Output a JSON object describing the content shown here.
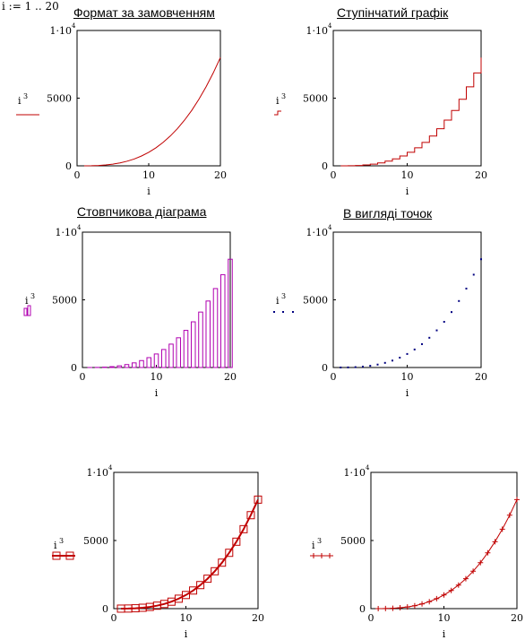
{
  "range_definition": "i := 1 .. 20",
  "colors": {
    "line": "#c00000",
    "bar": "#b000b0",
    "point": "#000080",
    "frame": "#000000"
  },
  "chart_data": [
    {
      "type": "line",
      "title": "Формат за замовченням",
      "xlabel": "i",
      "ylabel": "i",
      "ylabel_exponent": "3",
      "trace_style": "solid-line",
      "x": [
        1,
        2,
        3,
        4,
        5,
        6,
        7,
        8,
        9,
        10,
        11,
        12,
        13,
        14,
        15,
        16,
        17,
        18,
        19,
        20
      ],
      "y": [
        1,
        8,
        27,
        64,
        125,
        216,
        343,
        512,
        729,
        1000,
        1331,
        1728,
        2197,
        2744,
        3375,
        4096,
        4913,
        5832,
        6859,
        8000
      ],
      "xlim": [
        0,
        20
      ],
      "ylim": [
        0,
        10000
      ],
      "xticks": [
        "0",
        "10",
        "20"
      ],
      "yticks": [
        "0",
        "5000",
        "1·10"
      ],
      "ytick_top_exponent": "4"
    },
    {
      "type": "line",
      "title": "Ступінчатий графік",
      "xlabel": "i",
      "ylabel": "i",
      "ylabel_exponent": "3",
      "trace_style": "step",
      "x": [
        1,
        2,
        3,
        4,
        5,
        6,
        7,
        8,
        9,
        10,
        11,
        12,
        13,
        14,
        15,
        16,
        17,
        18,
        19,
        20
      ],
      "y": [
        1,
        8,
        27,
        64,
        125,
        216,
        343,
        512,
        729,
        1000,
        1331,
        1728,
        2197,
        2744,
        3375,
        4096,
        4913,
        5832,
        6859,
        8000
      ],
      "xlim": [
        0,
        20
      ],
      "ylim": [
        0,
        10000
      ],
      "xticks": [
        "0",
        "10",
        "20"
      ],
      "yticks": [
        "0",
        "5000",
        "1·10"
      ],
      "ytick_top_exponent": "4"
    },
    {
      "type": "bar",
      "title": "Стовпчикова діаграма",
      "xlabel": "i",
      "ylabel": "i",
      "ylabel_exponent": "3",
      "trace_style": "bars",
      "x": [
        1,
        2,
        3,
        4,
        5,
        6,
        7,
        8,
        9,
        10,
        11,
        12,
        13,
        14,
        15,
        16,
        17,
        18,
        19,
        20
      ],
      "y": [
        1,
        8,
        27,
        64,
        125,
        216,
        343,
        512,
        729,
        1000,
        1331,
        1728,
        2197,
        2744,
        3375,
        4096,
        4913,
        5832,
        6859,
        8000
      ],
      "xlim": [
        0,
        20
      ],
      "ylim": [
        0,
        10000
      ],
      "xticks": [
        "0",
        "10",
        "20"
      ],
      "yticks": [
        "0",
        "5000",
        "1·10"
      ],
      "ytick_top_exponent": "4"
    },
    {
      "type": "scatter",
      "title": "В вигляді точок",
      "xlabel": "i",
      "ylabel": "i",
      "ylabel_exponent": "3",
      "trace_style": "points",
      "x": [
        1,
        2,
        3,
        4,
        5,
        6,
        7,
        8,
        9,
        10,
        11,
        12,
        13,
        14,
        15,
        16,
        17,
        18,
        19,
        20
      ],
      "y": [
        1,
        8,
        27,
        64,
        125,
        216,
        343,
        512,
        729,
        1000,
        1331,
        1728,
        2197,
        2744,
        3375,
        4096,
        4913,
        5832,
        6859,
        8000
      ],
      "xlim": [
        0,
        20
      ],
      "ylim": [
        0,
        10000
      ],
      "xticks": [
        "0",
        "10",
        "20"
      ],
      "yticks": [
        "0",
        "5000",
        "1·10"
      ],
      "ytick_top_exponent": "4"
    },
    {
      "type": "line",
      "title": "",
      "xlabel": "i",
      "ylabel": "i",
      "ylabel_exponent": "3",
      "trace_style": "line-with-square-markers",
      "x": [
        1,
        2,
        3,
        4,
        5,
        6,
        7,
        8,
        9,
        10,
        11,
        12,
        13,
        14,
        15,
        16,
        17,
        18,
        19,
        20
      ],
      "y": [
        1,
        8,
        27,
        64,
        125,
        216,
        343,
        512,
        729,
        1000,
        1331,
        1728,
        2197,
        2744,
        3375,
        4096,
        4913,
        5832,
        6859,
        8000
      ],
      "xlim": [
        0,
        20
      ],
      "ylim": [
        0,
        10000
      ],
      "xticks": [
        "0",
        "10",
        "20"
      ],
      "yticks": [
        "0",
        "5000",
        "1·10"
      ],
      "ytick_top_exponent": "4"
    },
    {
      "type": "line",
      "title": "",
      "xlabel": "i",
      "ylabel": "i",
      "ylabel_exponent": "3",
      "trace_style": "line-with-plus-markers",
      "x": [
        1,
        2,
        3,
        4,
        5,
        6,
        7,
        8,
        9,
        10,
        11,
        12,
        13,
        14,
        15,
        16,
        17,
        18,
        19,
        20
      ],
      "y": [
        1,
        8,
        27,
        64,
        125,
        216,
        343,
        512,
        729,
        1000,
        1331,
        1728,
        2197,
        2744,
        3375,
        4096,
        4913,
        5832,
        6859,
        8000
      ],
      "xlim": [
        0,
        20
      ],
      "ylim": [
        0,
        10000
      ],
      "xticks": [
        "0",
        "10",
        "20"
      ],
      "yticks": [
        "0",
        "5000",
        "1·10"
      ],
      "ytick_top_exponent": "4"
    }
  ]
}
